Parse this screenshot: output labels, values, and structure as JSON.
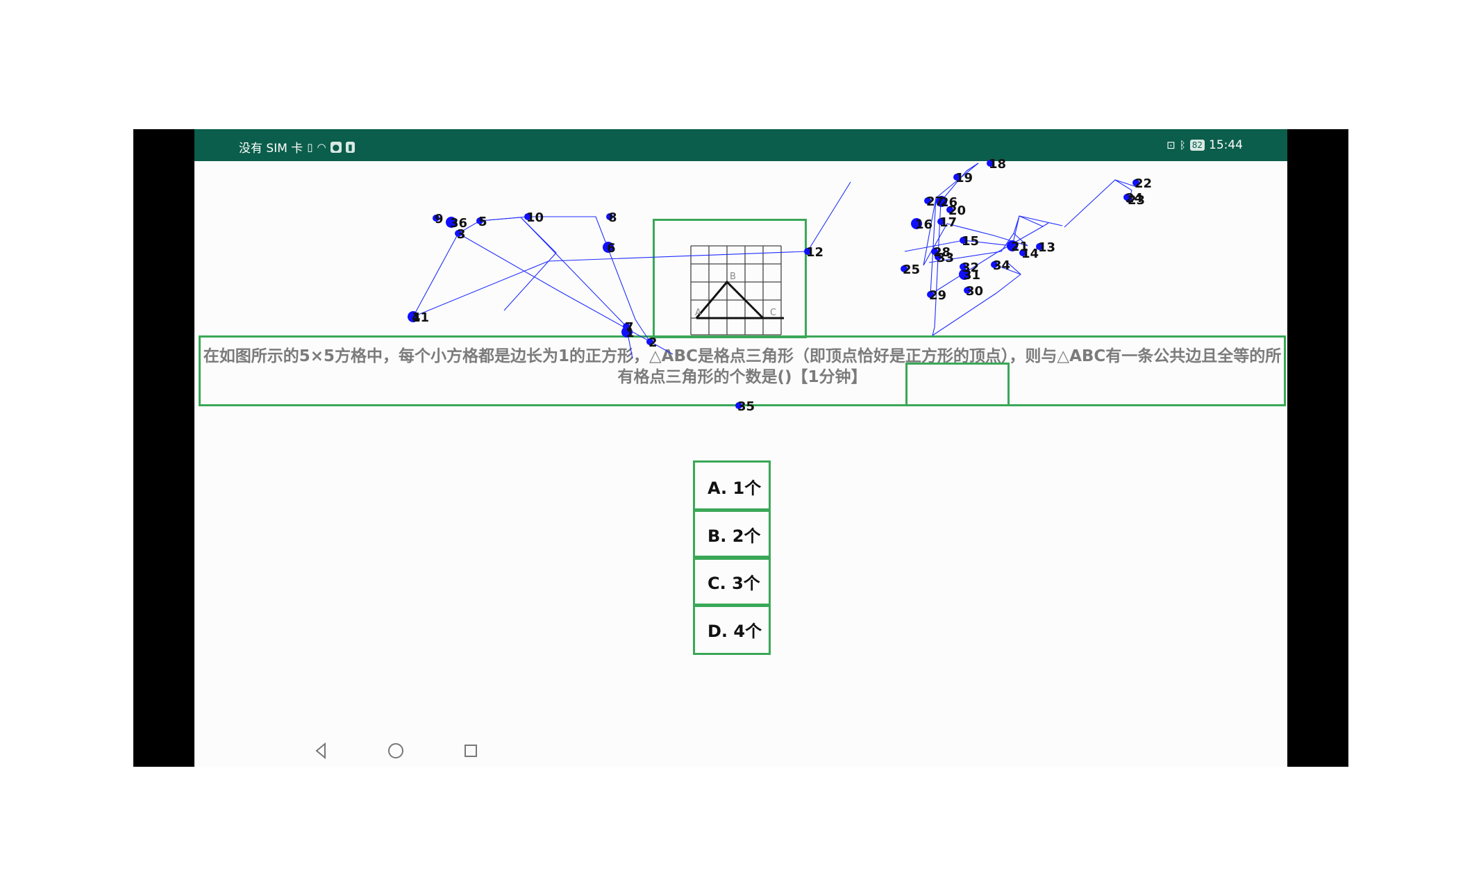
{
  "status_bar": {
    "left_text": "没有 SIM 卡",
    "battery": "82",
    "time": "15:44",
    "icons": [
      "sim-file-icon",
      "wifi-icon",
      "notification-app-icon",
      "notification-app-icon-2",
      "cast-icon",
      "bluetooth-icon",
      "battery-icon"
    ]
  },
  "question": {
    "text": "在如图所示的5×5方格中，每个小方格都是边长为1的正方形，△ABC是格点三角形（即顶点恰好是正方形的顶点），则与△ABC有一条公共边且全等的所有格点三角形的个数是()【1分钟】",
    "figure_labels": [
      "B",
      "A",
      "C"
    ]
  },
  "options": [
    {
      "label": "A. 1个"
    },
    {
      "label": "B. 2个"
    },
    {
      "label": "C. 3个"
    },
    {
      "label": "D. 4个"
    }
  ],
  "nav": {
    "buttons": [
      "back-icon",
      "home-icon",
      "recents-icon"
    ]
  },
  "debug_markers": {
    "labels": [
      "1",
      "2",
      "3",
      "4",
      "5",
      "6",
      "7",
      "8",
      "9",
      "10",
      "11",
      "12",
      "13",
      "14",
      "15",
      "16",
      "17",
      "18",
      "19",
      "20",
      "21",
      "22",
      "23",
      "24",
      "25",
      "26",
      "27",
      "28",
      "29",
      "30",
      "31",
      "32",
      "33",
      "34",
      "35",
      "36"
    ],
    "color": "#1010ff"
  },
  "colors": {
    "status_bar": "#0b5e4b",
    "box_border": "#3aa757",
    "question_text": "#7b7b7b"
  }
}
